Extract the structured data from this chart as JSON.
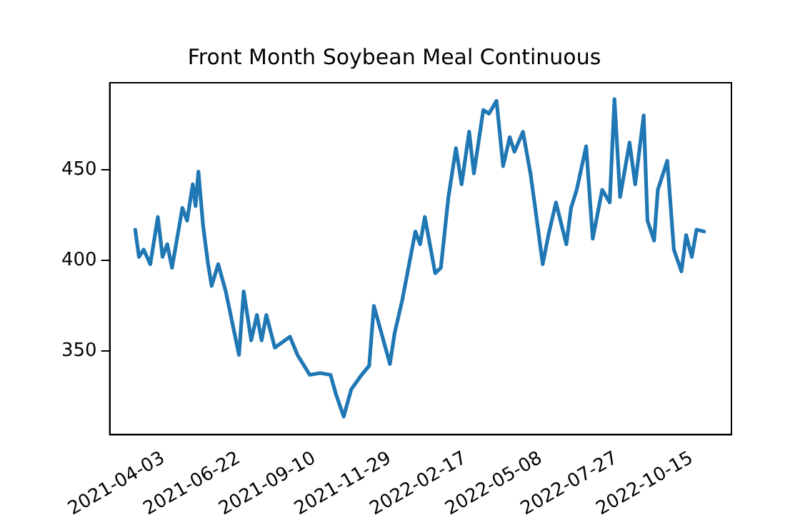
{
  "chart_data": {
    "type": "line",
    "title": "Front Month Soybean Meal Continuous",
    "x": [
      "2021-03-04",
      "2021-03-08",
      "2021-03-13",
      "2021-03-20",
      "2021-03-28",
      "2021-04-02",
      "2021-04-07",
      "2021-04-12",
      "2021-04-23",
      "2021-04-28",
      "2021-05-04",
      "2021-05-07",
      "2021-05-10",
      "2021-05-15",
      "2021-05-20",
      "2021-05-24",
      "2021-05-31",
      "2021-06-08",
      "2021-06-16",
      "2021-06-22",
      "2021-06-27",
      "2021-07-05",
      "2021-07-11",
      "2021-07-16",
      "2021-07-21",
      "2021-07-30",
      "2021-08-15",
      "2021-08-23",
      "2021-09-05",
      "2021-09-16",
      "2021-09-27",
      "2021-10-03",
      "2021-10-11",
      "2021-10-19",
      "2021-10-30",
      "2021-11-07",
      "2021-11-12",
      "2021-11-20",
      "2021-11-29",
      "2021-12-04",
      "2021-12-12",
      "2021-12-26",
      "2021-12-31",
      "2022-01-05",
      "2022-01-16",
      "2022-01-22",
      "2022-01-30",
      "2022-02-07",
      "2022-02-13",
      "2022-02-21",
      "2022-02-26",
      "2022-03-08",
      "2022-03-14",
      "2022-03-22",
      "2022-03-29",
      "2022-04-05",
      "2022-04-10",
      "2022-04-19",
      "2022-04-27",
      "2022-05-02",
      "2022-05-10",
      "2022-05-16",
      "2022-05-24",
      "2022-06-04",
      "2022-06-09",
      "2022-06-15",
      "2022-06-25",
      "2022-07-02",
      "2022-07-12",
      "2022-07-20",
      "2022-07-25",
      "2022-07-31",
      "2022-08-10",
      "2022-08-16",
      "2022-08-25",
      "2022-08-29",
      "2022-09-05",
      "2022-09-09",
      "2022-09-19",
      "2022-09-26",
      "2022-10-04",
      "2022-10-09",
      "2022-10-15",
      "2022-10-20",
      "2022-10-28"
    ],
    "values": [
      417,
      402,
      406,
      398,
      424,
      402,
      409,
      396,
      429,
      422,
      442,
      430,
      449,
      419,
      399,
      386,
      398,
      383,
      363,
      348,
      383,
      356,
      370,
      356,
      370,
      352,
      358,
      348,
      337,
      338,
      337,
      326,
      314,
      329,
      337,
      342,
      375,
      360,
      343,
      360,
      378,
      416,
      409,
      424,
      393,
      396,
      435,
      462,
      442,
      471,
      448,
      483,
      481,
      488,
      452,
      468,
      460,
      471,
      448,
      429,
      398,
      414,
      432,
      409,
      429,
      439,
      463,
      412,
      439,
      432,
      489,
      435,
      465,
      442,
      480,
      422,
      411,
      439,
      455,
      406,
      394,
      414,
      402,
      417,
      416
    ],
    "color": "#1f77b4",
    "xlim": [
      "2021-02-05",
      "2022-11-26"
    ],
    "xticks": [
      "2021-04-03",
      "2021-06-22",
      "2021-09-10",
      "2021-11-29",
      "2022-02-17",
      "2022-05-08",
      "2022-07-27",
      "2022-10-15"
    ],
    "ylim": [
      304,
      498
    ],
    "yticks": [
      350,
      400,
      450
    ],
    "grid": false,
    "legend": false
  }
}
